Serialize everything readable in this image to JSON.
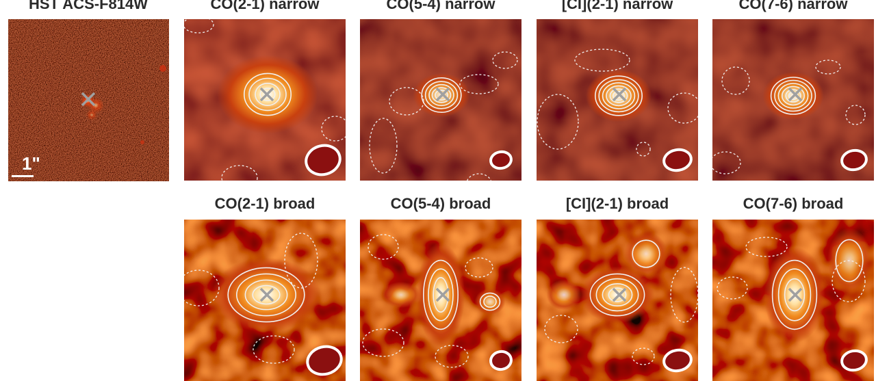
{
  "figure": {
    "hst": {
      "title": "HST ACS-F814W",
      "scale_label": "1\""
    },
    "narrow": [
      {
        "id": "co21",
        "title": "CO(2-1) narrow"
      },
      {
        "id": "co54",
        "title": "CO(5-4) narrow"
      },
      {
        "id": "ci21",
        "title": "[CI](2-1) narrow"
      },
      {
        "id": "co76",
        "title": "CO(7-6) narrow"
      }
    ],
    "broad": [
      {
        "id": "co21",
        "title": "CO(2-1) broad"
      },
      {
        "id": "co54",
        "title": "CO(5-4) broad"
      },
      {
        "id": "ci21",
        "title": "[CI](2-1) broad"
      },
      {
        "id": "co76",
        "title": "CO(7-6) broad"
      }
    ]
  },
  "colors": {
    "background_dark": "#7a1208",
    "colormap": [
      "#000000",
      "#5a0a05",
      "#8b1a0c",
      "#c8400f",
      "#f08a1e",
      "#ffd27a",
      "#ffffff"
    ],
    "contour": "#f0f0f0",
    "beam_fill": "#8b1010",
    "beam_edge": "#ffffff",
    "marker": "#a0a0a0"
  }
}
